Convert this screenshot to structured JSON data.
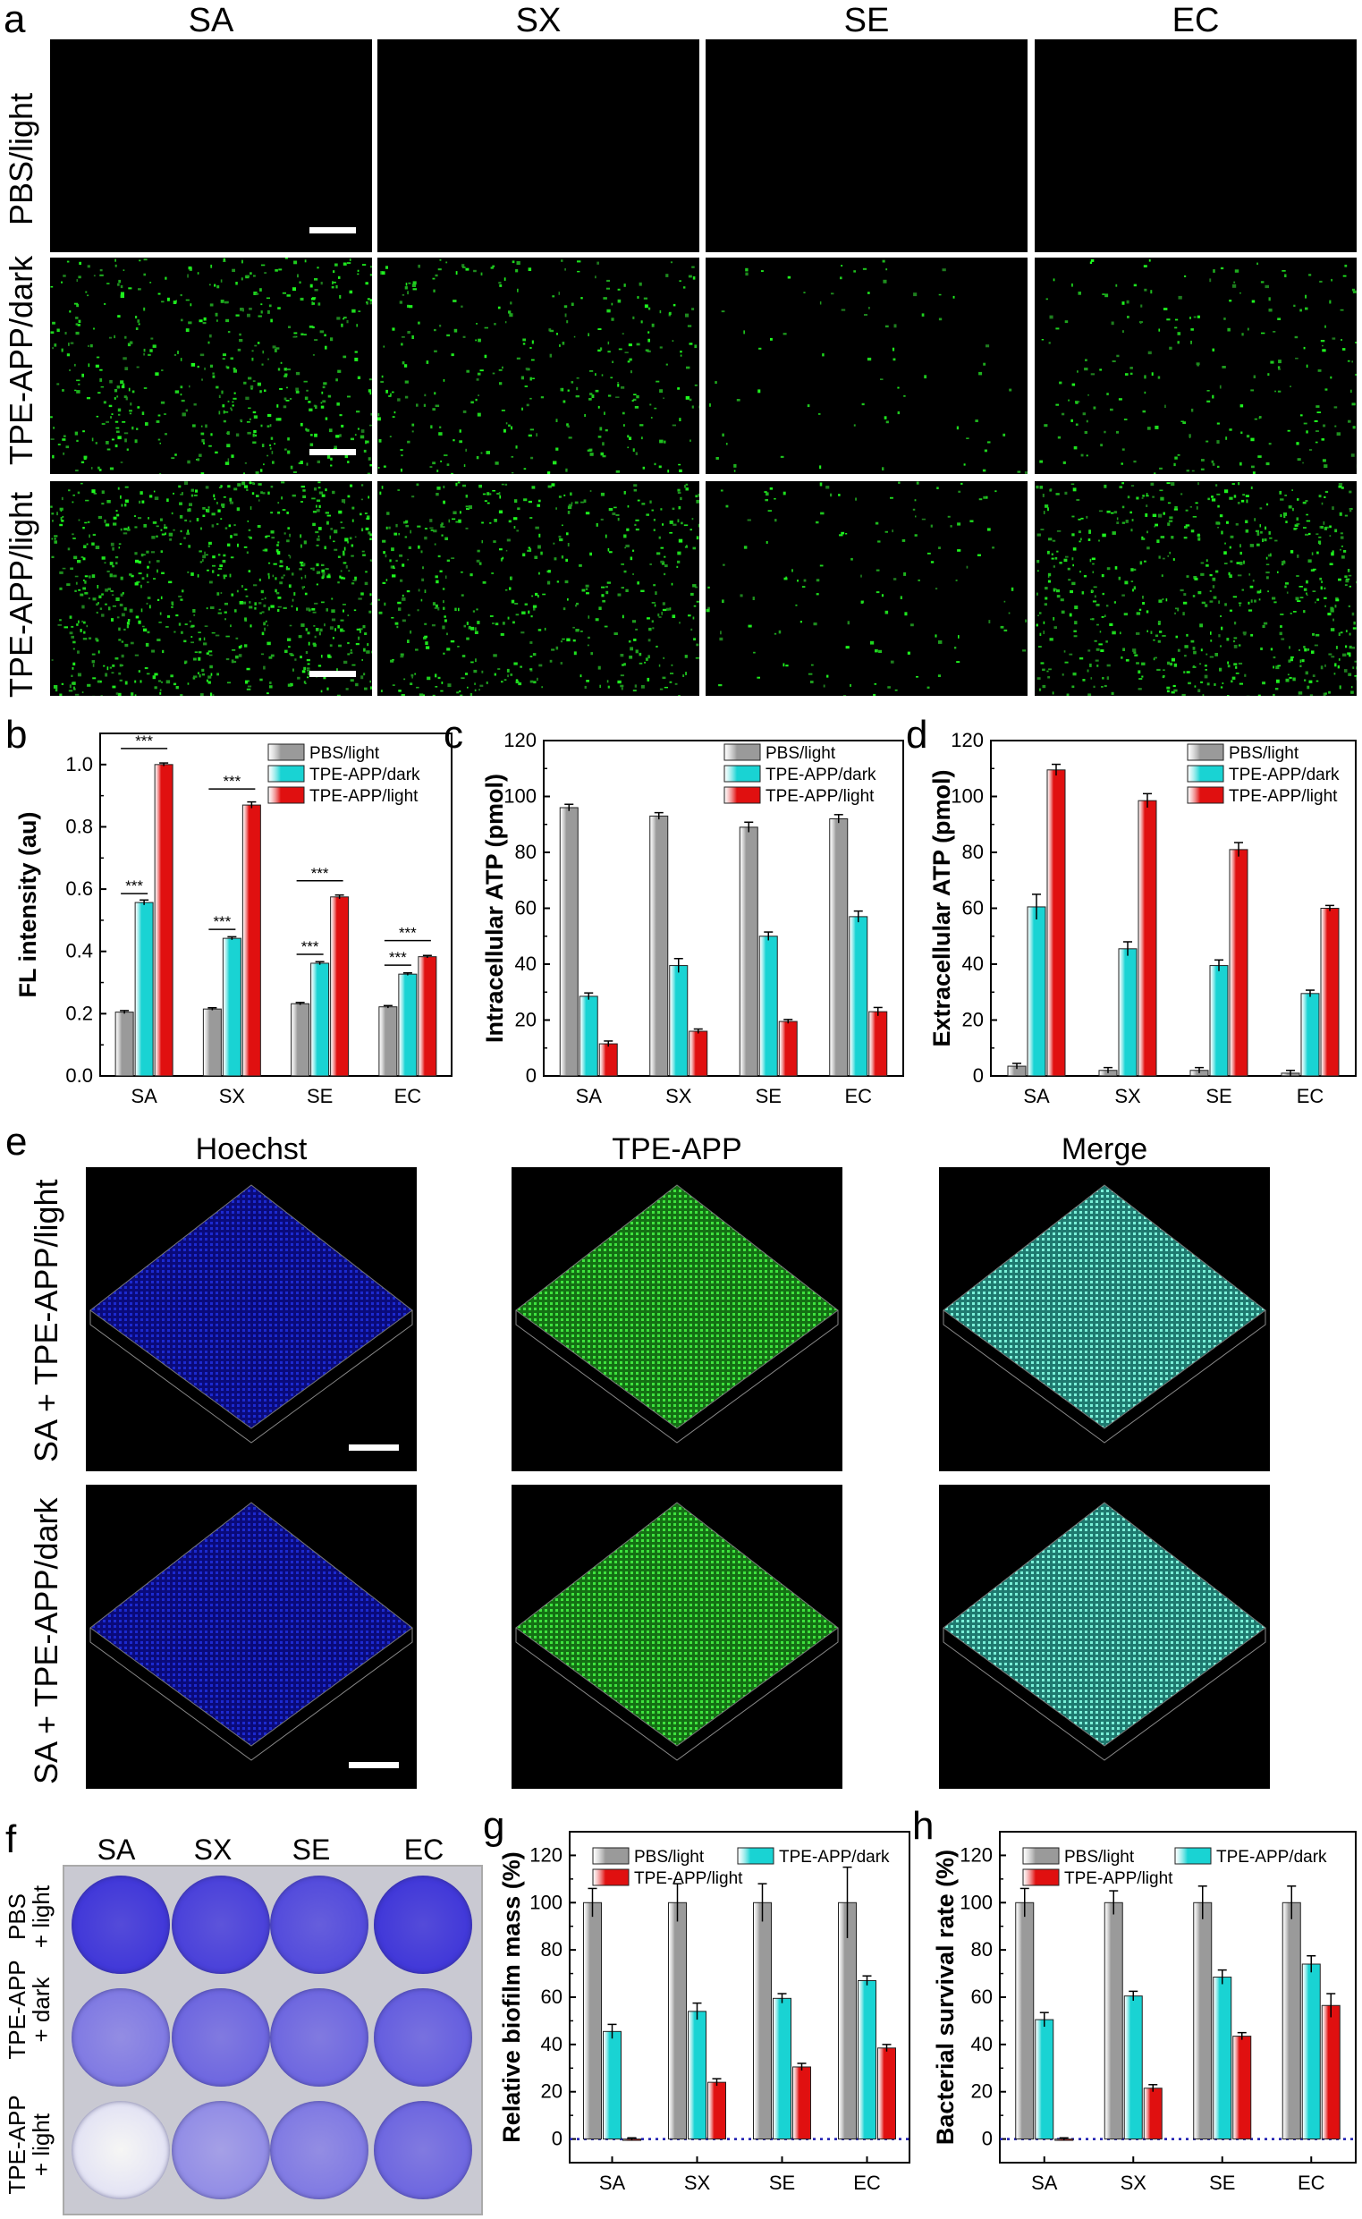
{
  "panel_a": {
    "label": "a",
    "columns": [
      "SA",
      "SX",
      "SE",
      "EC"
    ],
    "rows": [
      "PBS/light",
      "TPE-APP/dark",
      "TPE-APP/light"
    ],
    "density": [
      [
        0,
        0,
        0,
        0
      ],
      [
        0.55,
        0.35,
        0.08,
        0.25
      ],
      [
        0.85,
        0.55,
        0.15,
        0.7
      ]
    ]
  },
  "panel_e": {
    "label": "e",
    "columns": [
      "Hoechst",
      "TPE-APP",
      "Merge"
    ],
    "column_colors": [
      "#1a1ac8",
      "#22c06a",
      "#111111"
    ],
    "rows": [
      "SA + TPE-APP/light",
      "SA + TPE-APP/dark"
    ]
  },
  "panel_f": {
    "label": "f",
    "columns": [
      "SA",
      "SX",
      "SE",
      "EC"
    ],
    "rows": [
      [
        "PBS",
        "+ light"
      ],
      [
        "TPE-APP",
        "+ dark"
      ],
      [
        "TPE-APP",
        "+ light"
      ]
    ],
    "stain": [
      [
        0.95,
        0.9,
        0.85,
        0.95
      ],
      [
        0.6,
        0.7,
        0.7,
        0.75
      ],
      [
        0.05,
        0.5,
        0.6,
        0.7
      ]
    ]
  },
  "chart_data": [
    {
      "label": "b",
      "type": "bar",
      "categories": [
        "SA",
        "SX",
        "SE",
        "EC"
      ],
      "ylabel": "FL intensity (au)",
      "ylim": [
        0,
        1.1
      ],
      "yticks": [
        0.0,
        0.2,
        0.4,
        0.6,
        0.8,
        1.0
      ],
      "tick_decimals": 1,
      "series": [
        {
          "name": "PBS/light",
          "color": "#9a9a9a",
          "values": [
            0.205,
            0.215,
            0.232,
            0.222
          ],
          "errors": [
            0.005,
            0.004,
            0.004,
            0.004
          ]
        },
        {
          "name": "TPE-APP/dark",
          "color": "#19d3d3",
          "values": [
            0.557,
            0.442,
            0.362,
            0.327
          ],
          "errors": [
            0.008,
            0.005,
            0.005,
            0.004
          ]
        },
        {
          "name": "TPE-APP/light",
          "color": "#e01010",
          "values": [
            1.0,
            0.87,
            0.575,
            0.383
          ],
          "errors": [
            0.005,
            0.01,
            0.006,
            0.004
          ]
        }
      ],
      "significance": [
        {
          "category": 0,
          "text": "***",
          "pairs": [
            [
              0,
              1
            ],
            [
              0,
              2
            ]
          ]
        },
        {
          "category": 1,
          "text": "***",
          "pairs": [
            [
              0,
              1
            ],
            [
              0,
              2
            ]
          ]
        },
        {
          "category": 2,
          "text": "***",
          "pairs": [
            [
              0,
              1
            ],
            [
              0,
              2
            ]
          ]
        },
        {
          "category": 3,
          "text": "***",
          "pairs": [
            [
              0,
              1
            ],
            [
              0,
              2
            ]
          ]
        }
      ],
      "legend": "top-right"
    },
    {
      "label": "c",
      "type": "bar",
      "categories": [
        "SA",
        "SX",
        "SE",
        "EC"
      ],
      "ylabel": "Intracellular ATP (pmol)",
      "ylim": [
        0,
        120
      ],
      "yticks": [
        0,
        20,
        40,
        60,
        80,
        100,
        120
      ],
      "tick_decimals": 0,
      "series": [
        {
          "name": "PBS/light",
          "color": "#9a9a9a",
          "values": [
            96,
            93,
            89,
            92
          ],
          "errors": [
            1.2,
            1.2,
            1.8,
            1.5
          ]
        },
        {
          "name": "TPE-APP/dark",
          "color": "#19d3d3",
          "values": [
            28.5,
            39.5,
            50,
            57
          ],
          "errors": [
            1.2,
            2.5,
            1.5,
            2
          ]
        },
        {
          "name": "TPE-APP/light",
          "color": "#e01010",
          "values": [
            11.5,
            16,
            19.5,
            23
          ],
          "errors": [
            1,
            0.8,
            0.7,
            1.5
          ]
        }
      ],
      "legend": "top-right"
    },
    {
      "label": "d",
      "type": "bar",
      "categories": [
        "SA",
        "SX",
        "SE",
        "EC"
      ],
      "ylabel": "Extracellular ATP (pmol)",
      "ylim": [
        0,
        120
      ],
      "yticks": [
        0,
        20,
        40,
        60,
        80,
        100,
        120
      ],
      "tick_decimals": 0,
      "series": [
        {
          "name": "PBS/light",
          "color": "#9a9a9a",
          "values": [
            3.5,
            2,
            2,
            1
          ],
          "errors": [
            1,
            1,
            1,
            1
          ]
        },
        {
          "name": "TPE-APP/dark",
          "color": "#19d3d3",
          "values": [
            60.5,
            45.5,
            39.5,
            29.5
          ],
          "errors": [
            4.5,
            2.5,
            2,
            1.2
          ]
        },
        {
          "name": "TPE-APP/light",
          "color": "#e01010",
          "values": [
            109.5,
            98.5,
            81,
            60
          ],
          "errors": [
            2,
            2.5,
            2.5,
            1
          ]
        }
      ],
      "legend": "top-right"
    },
    {
      "label": "g",
      "type": "bar",
      "categories": [
        "SA",
        "SX",
        "SE",
        "EC"
      ],
      "ylabel": "Relative biofilm mass (%)",
      "ylim": [
        -10,
        130
      ],
      "yticks": [
        0,
        20,
        40,
        60,
        80,
        100,
        120
      ],
      "tick_decimals": 0,
      "zero_line": true,
      "series": [
        {
          "name": "PBS/light",
          "color": "#9a9a9a",
          "values": [
            100,
            100,
            100,
            100
          ],
          "errors": [
            6,
            8,
            8,
            15
          ]
        },
        {
          "name": "TPE-APP/dark",
          "color": "#19d3d3",
          "values": [
            45.5,
            54,
            59.5,
            67
          ],
          "errors": [
            3,
            3.5,
            2,
            2
          ]
        },
        {
          "name": "TPE-APP/light",
          "color": "#e01010",
          "values": [
            0,
            24,
            30.5,
            38.5
          ],
          "errors": [
            0.5,
            1.5,
            1.5,
            1.5
          ]
        }
      ],
      "legend": "top"
    },
    {
      "label": "h",
      "type": "bar",
      "categories": [
        "SA",
        "SX",
        "SE",
        "EC"
      ],
      "ylabel": "Bacterial survival rate (%)",
      "ylim": [
        -10,
        130
      ],
      "yticks": [
        0,
        20,
        40,
        60,
        80,
        100,
        120
      ],
      "tick_decimals": 0,
      "zero_line": true,
      "series": [
        {
          "name": "PBS/light",
          "color": "#9a9a9a",
          "values": [
            100,
            100,
            100,
            100
          ],
          "errors": [
            6,
            5,
            7,
            7
          ]
        },
        {
          "name": "TPE-APP/dark",
          "color": "#19d3d3",
          "values": [
            50.5,
            60.5,
            68.5,
            74
          ],
          "errors": [
            3,
            2,
            3,
            3.5
          ]
        },
        {
          "name": "TPE-APP/light",
          "color": "#e01010",
          "values": [
            0,
            21.5,
            43.5,
            56.5
          ],
          "errors": [
            0.5,
            1.5,
            1.5,
            5
          ]
        }
      ],
      "legend": "top"
    }
  ]
}
